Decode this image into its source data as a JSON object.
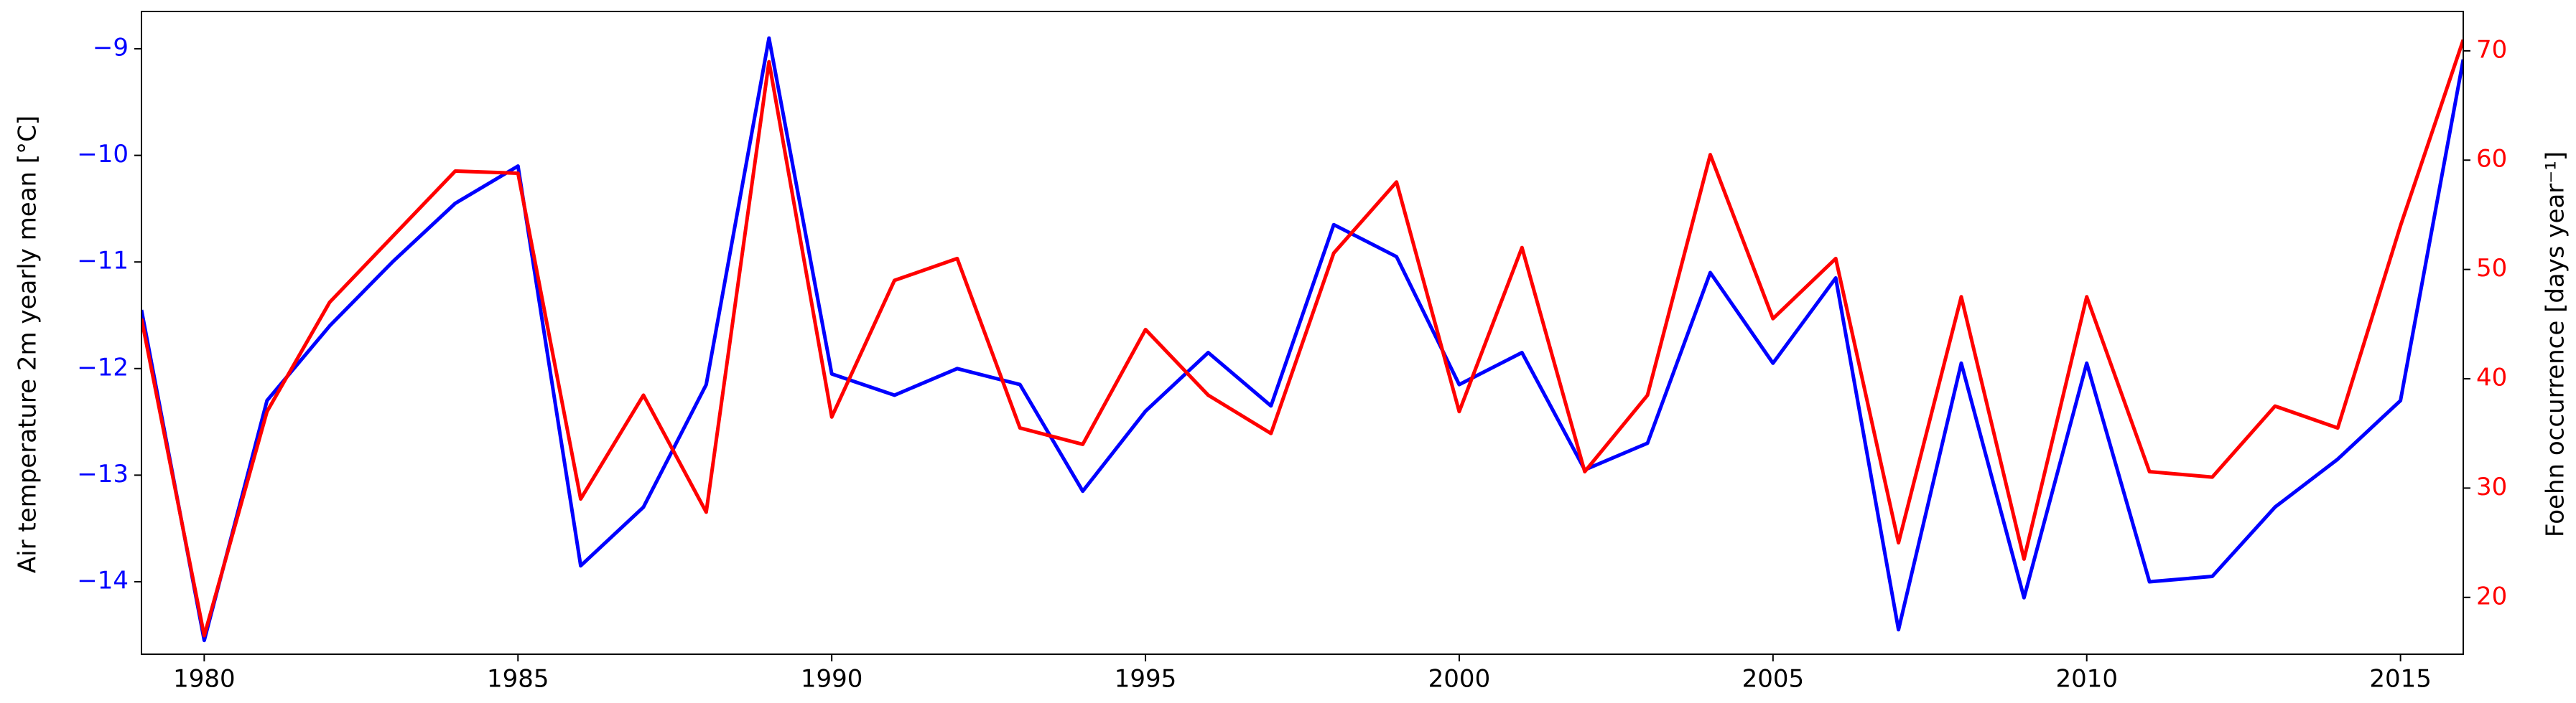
{
  "chart_data": {
    "type": "line",
    "x": [
      1979,
      1980,
      1981,
      1982,
      1983,
      1984,
      1985,
      1986,
      1987,
      1988,
      1989,
      1990,
      1991,
      1992,
      1993,
      1994,
      1995,
      1996,
      1997,
      1998,
      1999,
      2000,
      2001,
      2002,
      2003,
      2004,
      2005,
      2006,
      2007,
      2008,
      2009,
      2010,
      2011,
      2012,
      2013,
      2014,
      2015,
      2016
    ],
    "series": [
      {
        "name": "Air temperature",
        "color": "#0000ff",
        "values": [
          -11.45,
          -14.55,
          -12.3,
          -11.6,
          -11.0,
          -10.45,
          -10.1,
          -13.85,
          -13.3,
          -12.15,
          -8.9,
          -12.05,
          -12.25,
          -12.0,
          -12.15,
          -13.15,
          -12.4,
          -11.85,
          -12.35,
          -10.65,
          -10.95,
          -12.15,
          -11.85,
          -12.95,
          -12.7,
          -11.1,
          -11.95,
          -11.15,
          -14.45,
          -11.95,
          -14.15,
          -11.95,
          -14.0,
          -13.95,
          -13.3,
          -12.85,
          -12.3,
          -9.1
        ]
      },
      {
        "name": "Foehn occurrence",
        "color": "#ff0000",
        "axis": "y2",
        "values": [
          45.5,
          16.5,
          37,
          47,
          53,
          59,
          58.8,
          29,
          38.5,
          27.8,
          69,
          36.5,
          49,
          51,
          35.5,
          34,
          44.5,
          38.5,
          35,
          51.5,
          58,
          37,
          52,
          31.5,
          38.5,
          60.5,
          45.5,
          51,
          25,
          47.5,
          23.5,
          47.5,
          31.5,
          31,
          37.5,
          35.5,
          54,
          71
        ]
      }
    ],
    "xlim": [
      1979,
      2016
    ],
    "xticks": [
      1980,
      1985,
      1990,
      1995,
      2000,
      2005,
      2010,
      2015
    ],
    "ylabel": "Air temperature 2m yearly mean [°C]",
    "ylim": [
      -14.68,
      -8.65
    ],
    "yticks": [
      {
        "value": -14,
        "label": "−14"
      },
      {
        "value": -13,
        "label": "−13"
      },
      {
        "value": -12,
        "label": "−12"
      },
      {
        "value": -11,
        "label": "−11"
      },
      {
        "value": -10,
        "label": "−10"
      },
      {
        "value": -9,
        "label": "−9"
      }
    ],
    "y2label": "Foehn occurrence [days year⁻¹]",
    "y2lim": [
      14.8,
      73.6
    ],
    "y2ticks": [
      20,
      30,
      40,
      50,
      60,
      70
    ],
    "ytick_color": "#0000ff",
    "y2tick_color": "#ff0000"
  }
}
